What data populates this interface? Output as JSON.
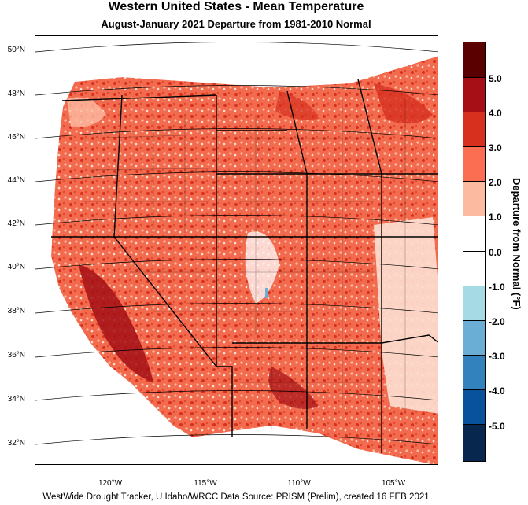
{
  "title": "Western United States - Mean Temperature",
  "subtitle": "August-January 2021  Departure from 1981-2010 Normal",
  "footer": "WestWide Drought Tracker, U Idaho/WRCC Data Source: PRISM (Prelim), created 16 FEB 2021",
  "map": {
    "lat_labels": [
      "50°N",
      "48°N",
      "46°N",
      "44°N",
      "42°N",
      "40°N",
      "38°N",
      "36°N",
      "34°N",
      "32°N"
    ],
    "lon_labels": [
      "120°W",
      "115°W",
      "110°W",
      "105°W"
    ]
  },
  "legend": {
    "title": "Departure from Normal (°F)",
    "labels": [
      "5.0",
      "4.0",
      "3.0",
      "2.0",
      "1.0",
      "0.0",
      "-1.0",
      "-2.0",
      "-3.0",
      "-4.0",
      "-5.0"
    ],
    "colors": [
      "#5a0000",
      "#a50f15",
      "#d7301f",
      "#fc6e51",
      "#fcbba1",
      "#ffffff",
      "#ffffff",
      "#a6dbe5",
      "#6aaed6",
      "#3182bd",
      "#08519c",
      "#08274f"
    ]
  }
}
